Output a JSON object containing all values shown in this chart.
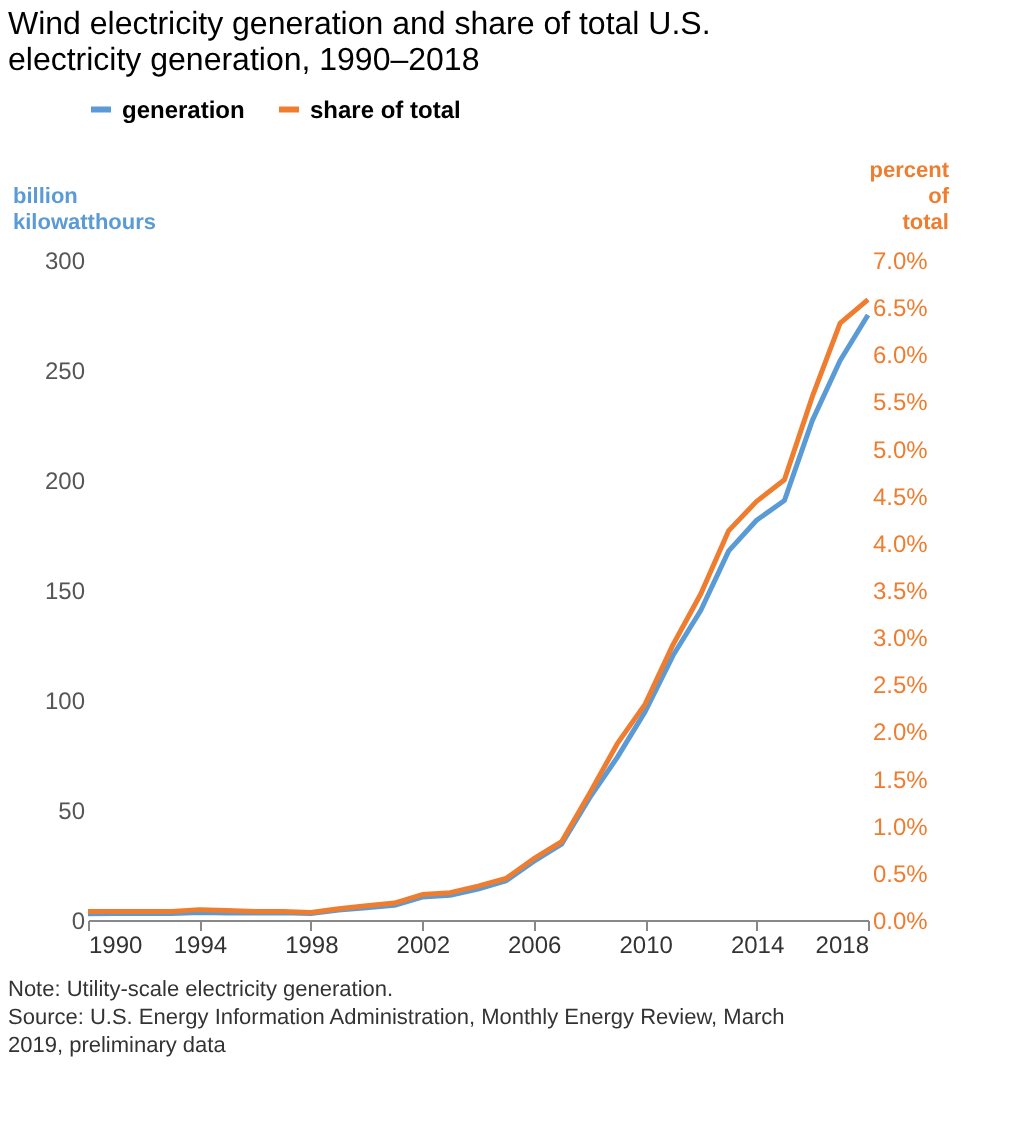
{
  "chart_data": {
    "type": "line",
    "title": "Wind electricity generation and share of total U.S. electricity generation, 1990–2018",
    "ylabel": "billion kilowatthours",
    "y2label": "percent of total",
    "x": [
      1990,
      1991,
      1992,
      1993,
      1994,
      1995,
      1996,
      1997,
      1998,
      1999,
      2000,
      2001,
      2002,
      2003,
      2004,
      2005,
      2006,
      2007,
      2008,
      2009,
      2010,
      2011,
      2012,
      2013,
      2014,
      2015,
      2016,
      2017,
      2018
    ],
    "series": [
      {
        "name": "generation",
        "color": "#5b9bd5",
        "values": [
          2.8,
          2.9,
          2.9,
          3.0,
          3.4,
          3.2,
          3.2,
          3.3,
          3.0,
          4.5,
          5.6,
          6.7,
          10.4,
          11.2,
          14.1,
          17.8,
          26.6,
          34.5,
          55.4,
          73.9,
          94.7,
          120.2,
          140.8,
          167.8,
          181.7,
          190.7,
          227.0,
          254.3,
          275.0
        ]
      },
      {
        "name": "share of total",
        "color": "#ee7d30",
        "axis": "y2",
        "values": [
          0.09,
          0.09,
          0.09,
          0.09,
          0.11,
          0.1,
          0.09,
          0.09,
          0.08,
          0.12,
          0.15,
          0.18,
          0.27,
          0.29,
          0.36,
          0.44,
          0.65,
          0.83,
          1.34,
          1.87,
          2.29,
          2.92,
          3.46,
          4.13,
          4.44,
          4.67,
          5.55,
          6.33,
          6.58
        ]
      }
    ],
    "xlim": [
      1990,
      2018
    ],
    "xticks": [
      1990,
      1994,
      1998,
      2002,
      2006,
      2010,
      2014,
      2018
    ],
    "ylim": [
      0,
      300
    ],
    "yticks": [
      0,
      50,
      100,
      150,
      200,
      250,
      300
    ],
    "y2lim": [
      0,
      7
    ],
    "y2ticks": [
      {
        "value": 0,
        "label": "0.0%"
      },
      {
        "value": 0.5,
        "label": "0.5%"
      },
      {
        "value": 1,
        "label": "1.0%"
      },
      {
        "value": 1.5,
        "label": "1.5%"
      },
      {
        "value": 2,
        "label": "2.0%"
      },
      {
        "value": 2.5,
        "label": "2.5%"
      },
      {
        "value": 3,
        "label": "3.0%"
      },
      {
        "value": 3.5,
        "label": "3.5%"
      },
      {
        "value": 4,
        "label": "4.0%"
      },
      {
        "value": 4.5,
        "label": "4.5%"
      },
      {
        "value": 5,
        "label": "5.0%"
      },
      {
        "value": 5.5,
        "label": "5.5%"
      },
      {
        "value": 6,
        "label": "6.0%"
      },
      {
        "value": 6.5,
        "label": "6.5%"
      },
      {
        "value": 7,
        "label": "7.0%"
      }
    ],
    "grid": false,
    "legend": "top",
    "marker": "none",
    "line_style": "solid",
    "annotations": [
      "Note: Utility-scale electricity generation.",
      "Source: U.S. Energy Information Administration, Monthly Energy Review, March 2019, preliminary data"
    ]
  }
}
